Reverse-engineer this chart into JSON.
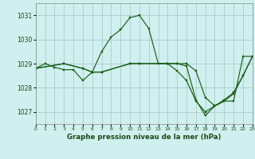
{
  "title": "Graphe pression niveau de la mer (hPa)",
  "bg_color": "#cff0ee",
  "grid_color": "#aacccc",
  "line_color": "#1a5c1a",
  "xlim": [
    0,
    23
  ],
  "ylim": [
    1026.5,
    1031.5
  ],
  "yticks": [
    1027,
    1028,
    1029,
    1030,
    1031
  ],
  "xticks": [
    0,
    1,
    2,
    3,
    4,
    5,
    6,
    7,
    8,
    9,
    10,
    11,
    12,
    13,
    14,
    15,
    16,
    17,
    18,
    19,
    20,
    21,
    22,
    23
  ],
  "series": [
    {
      "x": [
        0,
        1,
        2,
        3,
        4,
        5,
        6,
        7,
        8,
        9,
        10,
        11,
        12,
        13,
        14,
        15,
        16,
        17,
        18,
        19,
        20,
        21,
        22,
        23
      ],
      "y": [
        1028.8,
        1029.0,
        1028.85,
        1028.75,
        1028.75,
        1028.3,
        1028.65,
        1029.5,
        1030.1,
        1030.4,
        1030.9,
        1031.0,
        1030.45,
        1029.0,
        1029.0,
        1029.0,
        1028.9,
        1027.5,
        1026.85,
        1027.25,
        1027.5,
        1027.8,
        1028.5,
        1029.3
      ]
    },
    {
      "x": [
        0,
        3,
        5,
        6,
        7,
        10,
        11,
        14,
        15,
        16,
        17,
        18,
        19,
        20,
        21,
        22,
        23
      ],
      "y": [
        1028.8,
        1029.0,
        1028.8,
        1028.65,
        1028.65,
        1029.0,
        1029.0,
        1029.0,
        1029.0,
        1029.0,
        1028.7,
        1027.6,
        1027.25,
        1027.45,
        1027.45,
        1029.3,
        1029.3
      ]
    },
    {
      "x": [
        0,
        3,
        5,
        6,
        7,
        10,
        11,
        14,
        15,
        16,
        17,
        18,
        19,
        20,
        21,
        22,
        23
      ],
      "y": [
        1028.8,
        1029.0,
        1028.8,
        1028.65,
        1028.65,
        1029.0,
        1029.0,
        1029.0,
        1028.7,
        1028.3,
        1027.45,
        1027.0,
        1027.25,
        1027.45,
        1027.75,
        1028.5,
        1029.3
      ]
    }
  ]
}
